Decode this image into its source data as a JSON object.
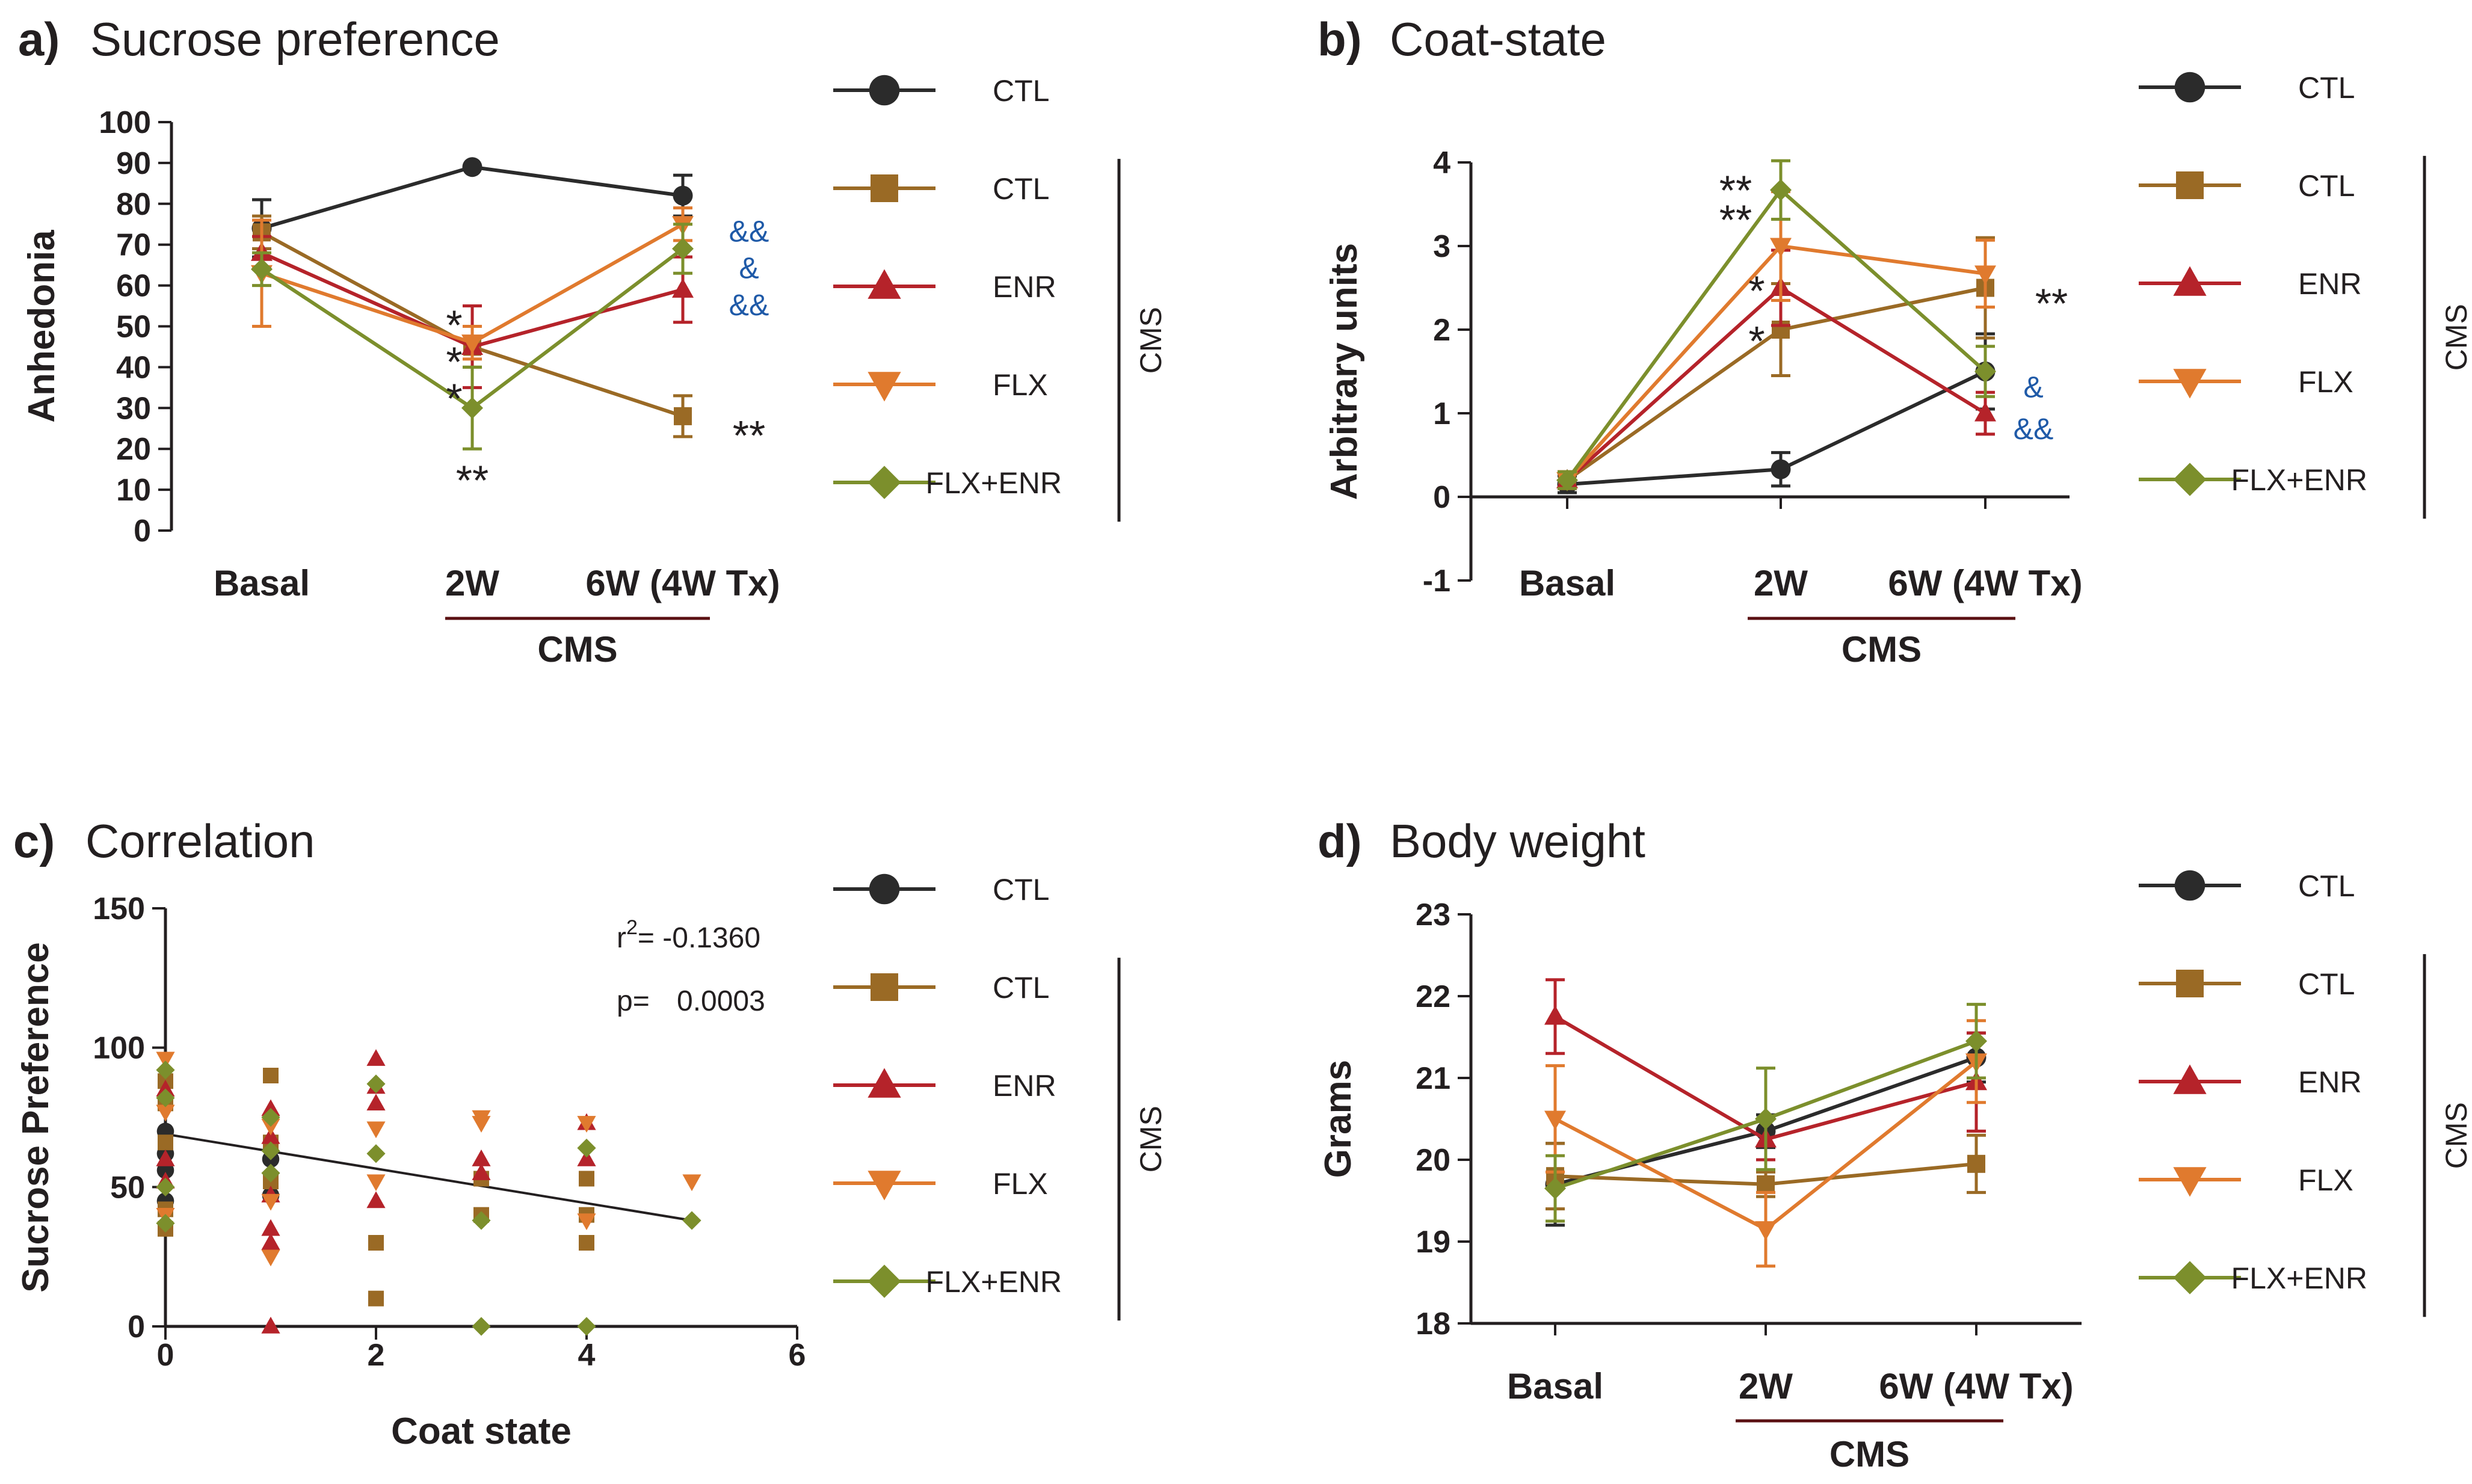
{
  "colors": {
    "CTL": "#2b2b2b",
    "CMS_CTL": "#9a6a25",
    "ENR": "#b5232a",
    "FLX": "#e07a2e",
    "FLX+ENR": "#7c8f2c",
    "annotation_blue": "#1f5aa8",
    "cms_underline": "#5a0f12"
  },
  "chart_data": [
    {
      "id": "a",
      "type": "line",
      "title_letter": "a)",
      "title": "Sucrose preference",
      "ylabel": "Anhedonia",
      "xlabel": "",
      "ylim": [
        0,
        100
      ],
      "yticks": [
        0,
        10,
        20,
        30,
        40,
        50,
        60,
        70,
        80,
        90,
        100
      ],
      "categories": [
        "Basal",
        "2W",
        "6W (4W Tx)"
      ],
      "bracket_label": "CMS",
      "series": [
        {
          "name": "CTL",
          "color_key": "CTL",
          "marker": "circle",
          "values": [
            74,
            89,
            82
          ],
          "errors": [
            7,
            0,
            5
          ]
        },
        {
          "name": "CTL",
          "color_key": "CMS_CTL",
          "marker": "square",
          "values": [
            73,
            45,
            28
          ],
          "errors": [
            4,
            5,
            5
          ]
        },
        {
          "name": "ENR",
          "color_key": "ENR",
          "marker": "triangle-up",
          "values": [
            68,
            45,
            59
          ],
          "errors": [
            4,
            10,
            8
          ]
        },
        {
          "name": "FLX",
          "color_key": "FLX",
          "marker": "triangle-down",
          "values": [
            63,
            46,
            75
          ],
          "errors": [
            13,
            4,
            4
          ]
        },
        {
          "name": "FLX+ENR",
          "color_key": "FLX+ENR",
          "marker": "diamond",
          "values": [
            64,
            30,
            69
          ],
          "errors": [
            4,
            10,
            6
          ]
        }
      ],
      "annotations": [
        {
          "text": "*",
          "cat": 1,
          "y": 50,
          "dx": -30,
          "style": "star"
        },
        {
          "text": "*",
          "cat": 1,
          "y": 41,
          "dx": -30,
          "style": "star"
        },
        {
          "text": "*",
          "cat": 1,
          "y": 32,
          "dx": -30,
          "style": "star"
        },
        {
          "text": "**",
          "cat": 1,
          "y": 12,
          "dx": 0,
          "style": "star"
        },
        {
          "text": "**",
          "cat": 2,
          "y": 23,
          "dx": 110,
          "style": "star"
        },
        {
          "text": "&&",
          "cat": 2,
          "y": 74,
          "dx": 110,
          "style": "amp"
        },
        {
          "text": "&",
          "cat": 2,
          "y": 65,
          "dx": 110,
          "style": "amp"
        },
        {
          "text": "&&",
          "cat": 2,
          "y": 56,
          "dx": 110,
          "style": "amp"
        }
      ]
    },
    {
      "id": "b",
      "type": "line",
      "title_letter": "b)",
      "title": "Coat-state",
      "ylabel": "Arbitrary units",
      "xlabel": "",
      "ylim": [
        -1,
        4
      ],
      "yticks": [
        -1,
        0,
        1,
        2,
        3,
        4
      ],
      "categories": [
        "Basal",
        "2W",
        "6W (4W Tx)"
      ],
      "bracket_label": "CMS",
      "series": [
        {
          "name": "CTL",
          "color_key": "CTL",
          "marker": "circle",
          "values": [
            0.15,
            0.33,
            1.5
          ],
          "errors": [
            0.1,
            0.2,
            0.45
          ]
        },
        {
          "name": "CTL",
          "color_key": "CMS_CTL",
          "marker": "square",
          "values": [
            0.2,
            2.0,
            2.5
          ],
          "errors": [
            0.1,
            0.55,
            0.6
          ]
        },
        {
          "name": "ENR",
          "color_key": "ENR",
          "marker": "triangle-up",
          "values": [
            0.2,
            2.5,
            1.0
          ],
          "errors": [
            0.1,
            0.45,
            0.25
          ]
        },
        {
          "name": "FLX",
          "color_key": "FLX",
          "marker": "triangle-down",
          "values": [
            0.2,
            3.0,
            2.67
          ],
          "errors": [
            0.1,
            0.65,
            0.4
          ]
        },
        {
          "name": "FLX+ENR",
          "color_key": "FLX+ENR",
          "marker": "diamond",
          "values": [
            0.2,
            3.67,
            1.5
          ],
          "errors": [
            0.1,
            0.35,
            0.3
          ]
        }
      ],
      "annotations": [
        {
          "text": "**",
          "cat": 1,
          "y": 3.65,
          "dx": -75,
          "style": "star"
        },
        {
          "text": "**",
          "cat": 1,
          "y": 3.3,
          "dx": -75,
          "style": "star"
        },
        {
          "text": "*",
          "cat": 1,
          "y": 2.45,
          "dx": -40,
          "style": "star"
        },
        {
          "text": "*",
          "cat": 1,
          "y": 1.85,
          "dx": -40,
          "style": "star"
        },
        {
          "text": "**",
          "cat": 2,
          "y": 2.3,
          "dx": 110,
          "style": "star"
        },
        {
          "text": "&",
          "cat": 2,
          "y": 1.35,
          "dx": 80,
          "style": "amp"
        },
        {
          "text": "&&",
          "cat": 2,
          "y": 0.85,
          "dx": 80,
          "style": "amp"
        }
      ]
    },
    {
      "id": "c",
      "type": "scatter",
      "title_letter": "c)",
      "title": "Correlation",
      "ylabel": "Sucrose Preference",
      "xlabel": "Coat state",
      "xlim": [
        0,
        6
      ],
      "ylim": [
        0,
        150
      ],
      "xticks": [
        0,
        2,
        4,
        6
      ],
      "yticks": [
        0,
        50,
        100,
        150
      ],
      "stats": {
        "r2_label": "r",
        "r2_sup": "2",
        "r2_value": "= -0.1360",
        "p_label": "p=",
        "p_value": "0.0003"
      },
      "fit_line": {
        "x": [
          0,
          5
        ],
        "y": [
          69,
          38
        ]
      },
      "groups": [
        {
          "name": "CTL",
          "color_key": "CTL",
          "marker": "circle",
          "points": [
            [
              0,
              56
            ],
            [
              0,
              62
            ],
            [
              0,
              70
            ],
            [
              1,
              47
            ],
            [
              1,
              60
            ],
            [
              0,
              45
            ]
          ]
        },
        {
          "name": "CTL",
          "color_key": "CMS_CTL",
          "marker": "square",
          "points": [
            [
              0,
              35
            ],
            [
              0,
              42
            ],
            [
              0,
              66
            ],
            [
              0,
              80
            ],
            [
              0,
              88
            ],
            [
              1,
              90
            ],
            [
              1,
              66
            ],
            [
              1,
              52
            ],
            [
              2,
              30
            ],
            [
              2,
              10
            ],
            [
              3,
              40
            ],
            [
              3,
              53
            ],
            [
              4,
              30
            ],
            [
              4,
              40
            ],
            [
              4,
              53
            ]
          ]
        },
        {
          "name": "ENR",
          "color_key": "ENR",
          "marker": "triangle-up",
          "points": [
            [
              0,
              85
            ],
            [
              0,
              60
            ],
            [
              0,
              52
            ],
            [
              1,
              78
            ],
            [
              1,
              68
            ],
            [
              1,
              47
            ],
            [
              1,
              35
            ],
            [
              1,
              30
            ],
            [
              1,
              0
            ],
            [
              2,
              96
            ],
            [
              2,
              86
            ],
            [
              2,
              80
            ],
            [
              2,
              45
            ],
            [
              3,
              60
            ],
            [
              3,
              55
            ],
            [
              4,
              73
            ],
            [
              4,
              60
            ]
          ]
        },
        {
          "name": "FLX",
          "color_key": "FLX",
          "marker": "triangle-down",
          "points": [
            [
              0,
              96
            ],
            [
              0,
              77
            ],
            [
              0,
              40
            ],
            [
              1,
              72
            ],
            [
              1,
              25
            ],
            [
              1,
              45
            ],
            [
              2,
              71
            ],
            [
              2,
              52
            ],
            [
              3,
              75
            ],
            [
              3,
              73
            ],
            [
              4,
              73
            ],
            [
              4,
              38
            ],
            [
              5,
              52
            ]
          ]
        },
        {
          "name": "FLX+ENR",
          "color_key": "FLX+ENR",
          "marker": "diamond",
          "points": [
            [
              0,
              92
            ],
            [
              0,
              82
            ],
            [
              0,
              50
            ],
            [
              0,
              37
            ],
            [
              1,
              75
            ],
            [
              1,
              55
            ],
            [
              1,
              63
            ],
            [
              2,
              87
            ],
            [
              2,
              62
            ],
            [
              3,
              38
            ],
            [
              3,
              0
            ],
            [
              4,
              64
            ],
            [
              4,
              0
            ],
            [
              5,
              38
            ]
          ]
        }
      ]
    },
    {
      "id": "d",
      "type": "line",
      "title_letter": "d)",
      "title": "Body weight",
      "ylabel": "Grams",
      "xlabel": "",
      "ylim": [
        18,
        23
      ],
      "yticks": [
        18,
        19,
        20,
        21,
        22,
        23
      ],
      "categories": [
        "Basal",
        "2W",
        "6W (4W Tx)"
      ],
      "bracket_label": "CMS",
      "series": [
        {
          "name": "CTL",
          "color_key": "CTL",
          "marker": "circle",
          "values": [
            19.7,
            20.35,
            21.25
          ],
          "errors": [
            0.5,
            0.2,
            0.3
          ]
        },
        {
          "name": "CTL",
          "color_key": "CMS_CTL",
          "marker": "square",
          "values": [
            19.8,
            19.7,
            19.95
          ],
          "errors": [
            0.4,
            0.15,
            0.35
          ]
        },
        {
          "name": "ENR",
          "color_key": "ENR",
          "marker": "triangle-up",
          "values": [
            21.75,
            20.25,
            20.95
          ],
          "errors": [
            0.45,
            0.25,
            0.6
          ]
        },
        {
          "name": "FLX",
          "color_key": "FLX",
          "marker": "triangle-down",
          "values": [
            20.5,
            19.15,
            21.2
          ],
          "errors": [
            0.65,
            0.45,
            0.5
          ]
        },
        {
          "name": "FLX+ENR",
          "color_key": "FLX+ENR",
          "marker": "diamond",
          "values": [
            19.65,
            20.5,
            21.45
          ],
          "errors": [
            0.4,
            0.62,
            0.45
          ]
        }
      ],
      "annotations": []
    }
  ],
  "legend": {
    "cms_label": "CMS",
    "entries": [
      {
        "label": "CTL",
        "color_key": "CTL",
        "marker": "circle",
        "cms": false
      },
      {
        "label": "CTL",
        "color_key": "CMS_CTL",
        "marker": "square",
        "cms": true
      },
      {
        "label": "ENR",
        "color_key": "ENR",
        "marker": "triangle-up",
        "cms": true
      },
      {
        "label": "FLX",
        "color_key": "FLX",
        "marker": "triangle-down",
        "cms": true
      },
      {
        "label": "FLX+ENR",
        "color_key": "FLX+ENR",
        "marker": "diamond",
        "cms": true
      }
    ]
  }
}
